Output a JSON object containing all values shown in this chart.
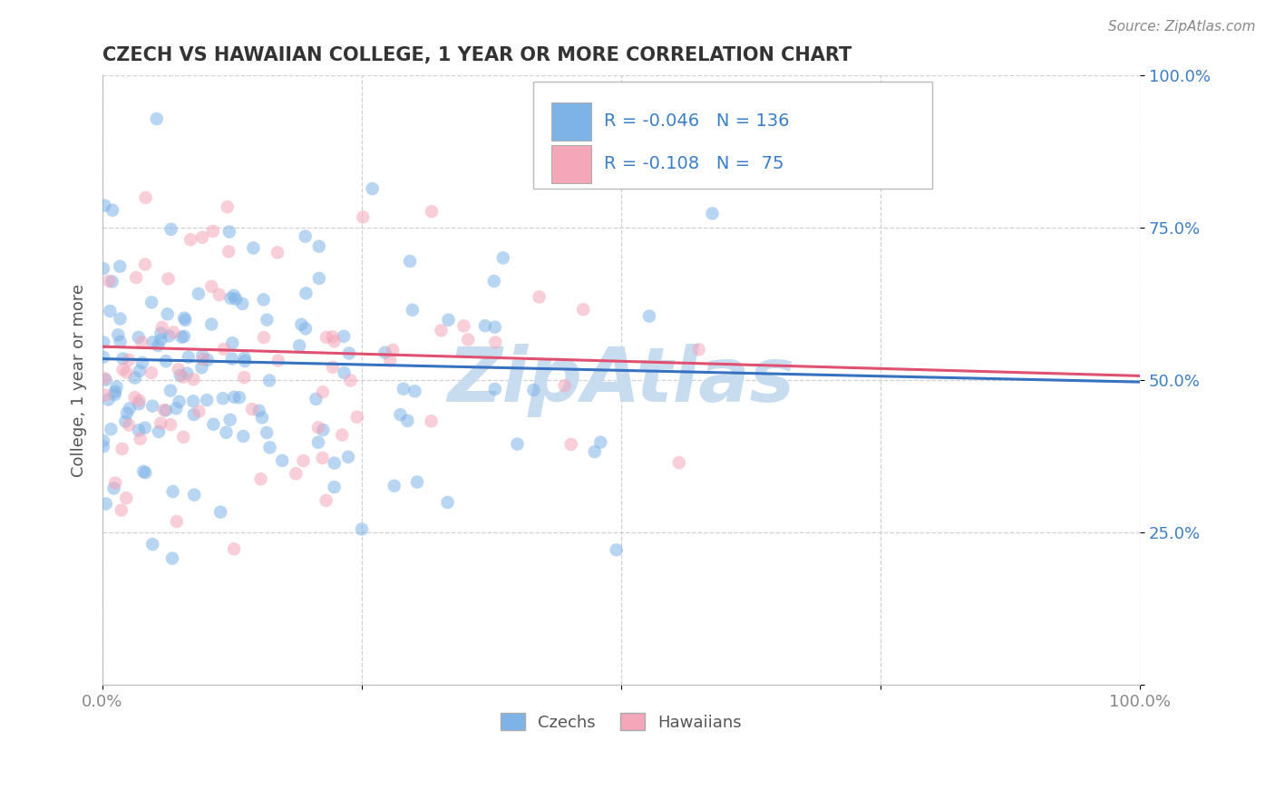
{
  "title": "CZECH VS HAWAIIAN COLLEGE, 1 YEAR OR MORE CORRELATION CHART",
  "source": "Source: ZipAtlas.com",
  "ylabel": "College, 1 year or more",
  "y_tick_labels": [
    "",
    "25.0%",
    "50.0%",
    "75.0%",
    "100.0%"
  ],
  "x_tick_labels": [
    "0.0%",
    "",
    "",
    "",
    "100.0%"
  ],
  "legend_entry1": "R = -0.046   N = 136",
  "legend_entry2": "R = -0.108   N =  75",
  "czech_R": -0.046,
  "czech_N": 136,
  "hawaiian_R": -0.108,
  "hawaiian_N": 75,
  "blue_color": "#7EB3E8",
  "pink_color": "#F4A7B9",
  "blue_line_color": "#3672C0",
  "pink_line_color": "#E05070",
  "dot_alpha": 0.55,
  "dot_size": 110,
  "watermark_color": "#C8DCF0",
  "title_color": "#333333",
  "source_color": "#888888",
  "tick_color_y": "#3B7EC8",
  "tick_color_x": "#888888",
  "grid_color": "#CCCCCC"
}
